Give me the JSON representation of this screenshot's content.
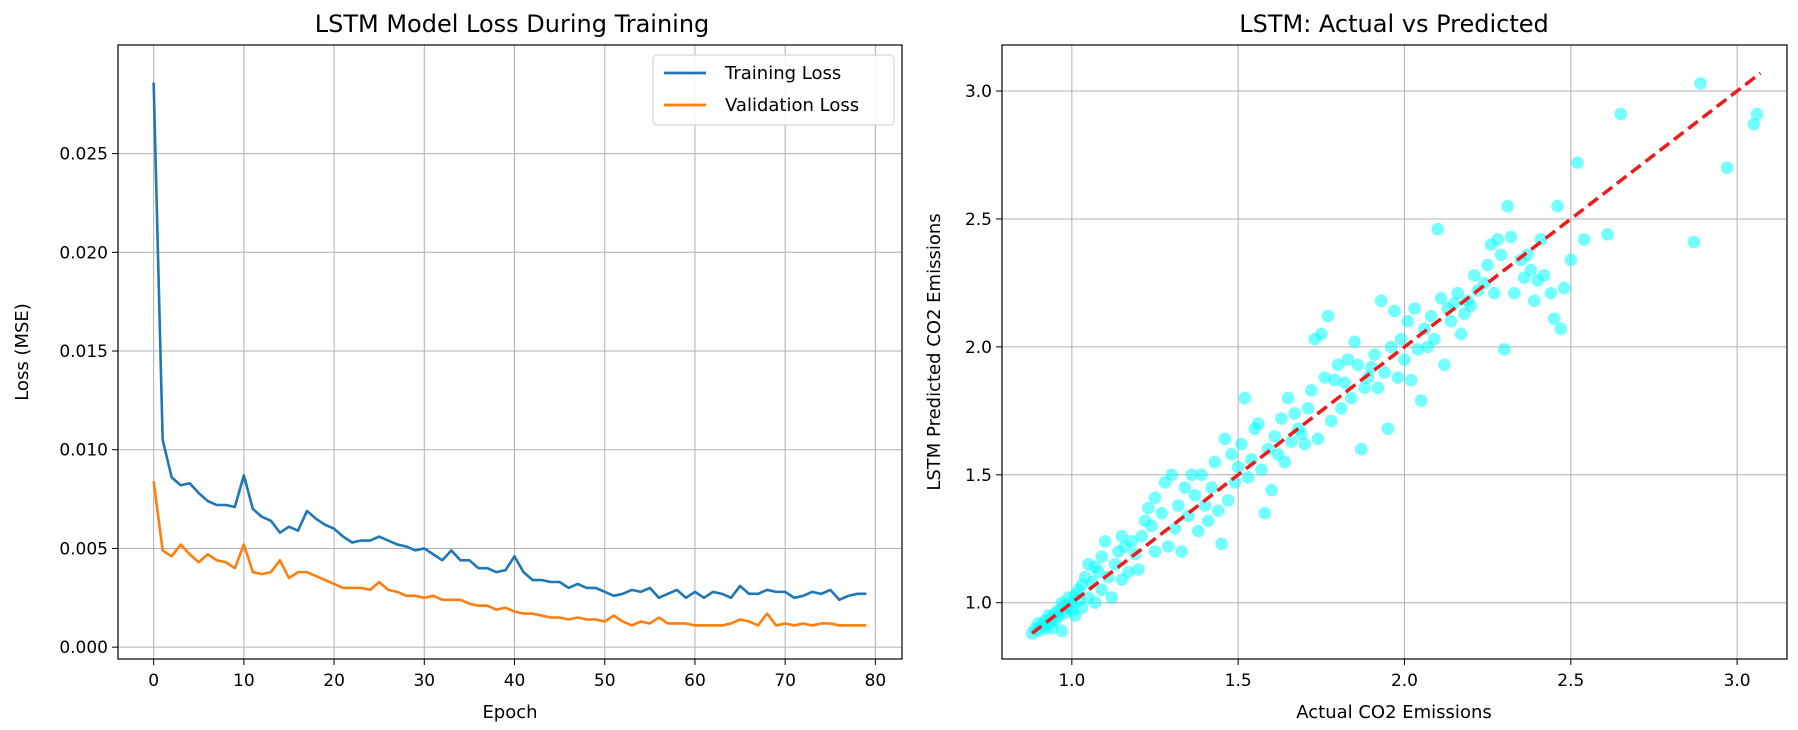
{
  "colors": {
    "training": "#1f77b4",
    "validation": "#ff7f0e",
    "scatter": "#00ffff",
    "ideal": "#ee1c1c",
    "grid": "#b0b0b0"
  },
  "chart_data": [
    {
      "type": "line",
      "title": "LSTM Model Loss During Training",
      "xlabel": "Epoch",
      "ylabel": "Loss (MSE)",
      "xlim": [
        -3.95,
        82.95
      ],
      "ylim": [
        -0.0006,
        0.0305
      ],
      "xticks": [
        0,
        10,
        20,
        30,
        40,
        50,
        60,
        70,
        80
      ],
      "yticks": [
        0.0,
        0.005,
        0.01,
        0.015,
        0.02,
        0.025
      ],
      "ytick_labels": [
        "0.000",
        "0.005",
        "0.010",
        "0.015",
        "0.020",
        "0.025"
      ],
      "grid": true,
      "legend_position": "top-right",
      "series": [
        {
          "name": "Training Loss",
          "values": [
            0.0286,
            0.0105,
            0.0086,
            0.0082,
            0.0083,
            0.0078,
            0.0074,
            0.0072,
            0.0072,
            0.0071,
            0.0087,
            0.007,
            0.0066,
            0.0064,
            0.0058,
            0.0061,
            0.0059,
            0.0069,
            0.0065,
            0.0062,
            0.006,
            0.0056,
            0.0053,
            0.0054,
            0.0054,
            0.0056,
            0.0054,
            0.0052,
            0.0051,
            0.0049,
            0.005,
            0.0047,
            0.0044,
            0.0049,
            0.0044,
            0.0044,
            0.004,
            0.004,
            0.0038,
            0.0039,
            0.0046,
            0.0038,
            0.0034,
            0.0034,
            0.0033,
            0.0033,
            0.003,
            0.0032,
            0.003,
            0.003,
            0.0028,
            0.0026,
            0.0027,
            0.0029,
            0.0028,
            0.003,
            0.0025,
            0.0027,
            0.0029,
            0.0025,
            0.0028,
            0.0025,
            0.0028,
            0.0027,
            0.0025,
            0.0031,
            0.0027,
            0.0027,
            0.0029,
            0.0028,
            0.0028,
            0.0025,
            0.0026,
            0.0028,
            0.0027,
            0.0029,
            0.0024,
            0.0026,
            0.0027,
            0.0027
          ]
        },
        {
          "name": "Validation Loss",
          "values": [
            0.0084,
            0.0049,
            0.0046,
            0.0052,
            0.0047,
            0.0043,
            0.0047,
            0.0044,
            0.0043,
            0.004,
            0.0052,
            0.0038,
            0.0037,
            0.0038,
            0.0044,
            0.0035,
            0.0038,
            0.0038,
            0.0036,
            0.0034,
            0.0032,
            0.003,
            0.003,
            0.003,
            0.0029,
            0.0033,
            0.0029,
            0.0028,
            0.0026,
            0.0026,
            0.0025,
            0.0026,
            0.0024,
            0.0024,
            0.0024,
            0.0022,
            0.0021,
            0.0021,
            0.0019,
            0.002,
            0.0018,
            0.0017,
            0.0017,
            0.0016,
            0.0015,
            0.0015,
            0.0014,
            0.0015,
            0.0014,
            0.0014,
            0.0013,
            0.0016,
            0.0013,
            0.0011,
            0.0013,
            0.0012,
            0.0015,
            0.0012,
            0.0012,
            0.0012,
            0.0011,
            0.0011,
            0.0011,
            0.0011,
            0.0012,
            0.0014,
            0.0013,
            0.0011,
            0.0017,
            0.0011,
            0.0012,
            0.0011,
            0.0012,
            0.0011,
            0.0012,
            0.0012,
            0.0011,
            0.0011,
            0.0011,
            0.0011
          ]
        }
      ]
    },
    {
      "type": "scatter",
      "title": "LSTM: Actual vs Predicted",
      "xlabel": "Actual CO2 Emissions",
      "ylabel": "LSTM Predicted CO2 Emissions",
      "xlim": [
        0.79,
        3.15
      ],
      "ylim": [
        0.78,
        3.18
      ],
      "xticks": [
        1.0,
        1.5,
        2.0,
        2.5,
        3.0
      ],
      "yticks": [
        1.0,
        1.5,
        2.0,
        2.5,
        3.0
      ],
      "xtick_labels": [
        "1.0",
        "1.5",
        "2.0",
        "2.5",
        "3.0"
      ],
      "ytick_labels": [
        "1.0",
        "1.5",
        "2.0",
        "2.5",
        "3.0"
      ],
      "grid": true,
      "ideal_line": {
        "x": [
          0.88,
          3.07
        ],
        "y": [
          0.88,
          3.07
        ],
        "style": "dashed"
      },
      "points": [
        [
          0.88,
          0.88
        ],
        [
          0.89,
          0.9
        ],
        [
          0.9,
          0.89
        ],
        [
          0.9,
          0.92
        ],
        [
          0.91,
          0.91
        ],
        [
          0.92,
          0.9
        ],
        [
          0.92,
          0.93
        ],
        [
          0.93,
          0.92
        ],
        [
          0.93,
          0.95
        ],
        [
          0.94,
          0.9
        ],
        [
          0.94,
          0.94
        ],
        [
          0.95,
          0.93
        ],
        [
          0.95,
          0.96
        ],
        [
          0.96,
          0.95
        ],
        [
          0.96,
          0.97
        ],
        [
          0.97,
          0.89
        ],
        [
          0.97,
          1.0
        ],
        [
          0.98,
          0.96
        ],
        [
          0.98,
          0.99
        ],
        [
          0.99,
          0.98
        ],
        [
          0.99,
          1.02
        ],
        [
          1.0,
          1.0
        ],
        [
          1.0,
          0.97
        ],
        [
          1.01,
          1.03
        ],
        [
          1.01,
          0.95
        ],
        [
          1.02,
          1.05
        ],
        [
          1.02,
          1.01
        ],
        [
          1.03,
          1.07
        ],
        [
          1.03,
          0.98
        ],
        [
          1.04,
          1.1
        ],
        [
          1.05,
          1.15
        ],
        [
          1.05,
          1.02
        ],
        [
          1.06,
          1.08
        ],
        [
          1.07,
          1.14
        ],
        [
          1.07,
          1.0
        ],
        [
          1.08,
          1.12
        ],
        [
          1.09,
          1.18
        ],
        [
          1.09,
          1.05
        ],
        [
          1.1,
          1.24
        ],
        [
          1.11,
          1.1
        ],
        [
          1.12,
          1.02
        ],
        [
          1.13,
          1.15
        ],
        [
          1.14,
          1.2
        ],
        [
          1.15,
          1.26
        ],
        [
          1.15,
          1.09
        ],
        [
          1.16,
          1.22
        ],
        [
          1.17,
          1.12
        ],
        [
          1.18,
          1.24
        ],
        [
          1.19,
          1.19
        ],
        [
          1.2,
          1.13
        ],
        [
          1.21,
          1.26
        ],
        [
          1.22,
          1.32
        ],
        [
          1.23,
          1.37
        ],
        [
          1.24,
          1.3
        ],
        [
          1.25,
          1.41
        ],
        [
          1.25,
          1.2
        ],
        [
          1.27,
          1.35
        ],
        [
          1.28,
          1.47
        ],
        [
          1.29,
          1.22
        ],
        [
          1.3,
          1.5
        ],
        [
          1.31,
          1.29
        ],
        [
          1.32,
          1.38
        ],
        [
          1.33,
          1.2
        ],
        [
          1.34,
          1.45
        ],
        [
          1.35,
          1.34
        ],
        [
          1.36,
          1.5
        ],
        [
          1.37,
          1.42
        ],
        [
          1.38,
          1.28
        ],
        [
          1.39,
          1.5
        ],
        [
          1.4,
          1.38
        ],
        [
          1.41,
          1.32
        ],
        [
          1.42,
          1.45
        ],
        [
          1.43,
          1.55
        ],
        [
          1.44,
          1.36
        ],
        [
          1.45,
          1.23
        ],
        [
          1.46,
          1.64
        ],
        [
          1.47,
          1.4
        ],
        [
          1.48,
          1.58
        ],
        [
          1.49,
          1.47
        ],
        [
          1.5,
          1.53
        ],
        [
          1.51,
          1.62
        ],
        [
          1.52,
          1.8
        ],
        [
          1.53,
          1.49
        ],
        [
          1.54,
          1.56
        ],
        [
          1.55,
          1.68
        ],
        [
          1.56,
          1.7
        ],
        [
          1.57,
          1.52
        ],
        [
          1.58,
          1.35
        ],
        [
          1.59,
          1.6
        ],
        [
          1.6,
          1.44
        ],
        [
          1.61,
          1.65
        ],
        [
          1.62,
          1.58
        ],
        [
          1.63,
          1.72
        ],
        [
          1.64,
          1.55
        ],
        [
          1.65,
          1.8
        ],
        [
          1.66,
          1.63
        ],
        [
          1.67,
          1.74
        ],
        [
          1.68,
          1.68
        ],
        [
          1.69,
          1.66
        ],
        [
          1.7,
          1.62
        ],
        [
          1.71,
          1.76
        ],
        [
          1.72,
          1.83
        ],
        [
          1.73,
          2.03
        ],
        [
          1.74,
          1.64
        ],
        [
          1.75,
          2.05
        ],
        [
          1.76,
          1.88
        ],
        [
          1.77,
          2.12
        ],
        [
          1.78,
          1.71
        ],
        [
          1.79,
          1.87
        ],
        [
          1.8,
          1.93
        ],
        [
          1.81,
          1.76
        ],
        [
          1.82,
          1.86
        ],
        [
          1.83,
          1.95
        ],
        [
          1.84,
          1.8
        ],
        [
          1.85,
          2.02
        ],
        [
          1.86,
          1.93
        ],
        [
          1.87,
          1.6
        ],
        [
          1.88,
          1.84
        ],
        [
          1.89,
          1.88
        ],
        [
          1.9,
          1.92
        ],
        [
          1.91,
          1.97
        ],
        [
          1.92,
          1.84
        ],
        [
          1.93,
          2.18
        ],
        [
          1.94,
          1.9
        ],
        [
          1.95,
          1.68
        ],
        [
          1.96,
          2.0
        ],
        [
          1.97,
          2.14
        ],
        [
          1.98,
          1.88
        ],
        [
          1.99,
          2.03
        ],
        [
          2.0,
          1.95
        ],
        [
          2.01,
          2.1
        ],
        [
          2.02,
          1.87
        ],
        [
          2.03,
          2.15
        ],
        [
          2.04,
          1.99
        ],
        [
          2.05,
          1.79
        ],
        [
          2.06,
          2.07
        ],
        [
          2.07,
          2.0
        ],
        [
          2.08,
          2.12
        ],
        [
          2.09,
          2.03
        ],
        [
          2.1,
          2.46
        ],
        [
          2.11,
          2.19
        ],
        [
          2.12,
          1.93
        ],
        [
          2.13,
          2.15
        ],
        [
          2.14,
          2.1
        ],
        [
          2.15,
          2.17
        ],
        [
          2.16,
          2.21
        ],
        [
          2.17,
          2.05
        ],
        [
          2.18,
          2.13
        ],
        [
          2.19,
          2.18
        ],
        [
          2.2,
          2.16
        ],
        [
          2.21,
          2.28
        ],
        [
          2.22,
          2.22
        ],
        [
          2.24,
          2.25
        ],
        [
          2.25,
          2.32
        ],
        [
          2.26,
          2.4
        ],
        [
          2.27,
          2.21
        ],
        [
          2.28,
          2.42
        ],
        [
          2.29,
          2.36
        ],
        [
          2.3,
          1.99
        ],
        [
          2.31,
          2.55
        ],
        [
          2.32,
          2.43
        ],
        [
          2.33,
          2.21
        ],
        [
          2.35,
          2.34
        ],
        [
          2.36,
          2.27
        ],
        [
          2.37,
          2.36
        ],
        [
          2.38,
          2.3
        ],
        [
          2.39,
          2.18
        ],
        [
          2.4,
          2.26
        ],
        [
          2.41,
          2.42
        ],
        [
          2.42,
          2.28
        ],
        [
          2.44,
          2.21
        ],
        [
          2.45,
          2.11
        ],
        [
          2.46,
          2.55
        ],
        [
          2.47,
          2.07
        ],
        [
          2.48,
          2.23
        ],
        [
          2.5,
          2.34
        ],
        [
          2.52,
          2.72
        ],
        [
          2.54,
          2.42
        ],
        [
          2.61,
          2.44
        ],
        [
          2.65,
          2.91
        ],
        [
          2.87,
          2.41
        ],
        [
          2.89,
          3.03
        ],
        [
          2.97,
          2.7
        ],
        [
          3.05,
          2.87
        ],
        [
          3.06,
          2.91
        ]
      ]
    }
  ]
}
